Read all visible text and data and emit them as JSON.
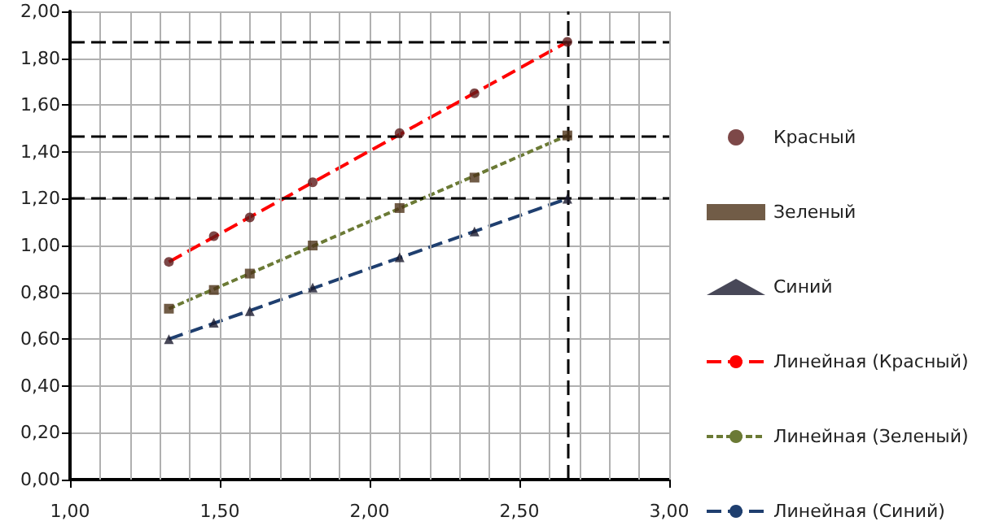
{
  "chart_data": {
    "type": "scatter",
    "xlim": [
      1,
      3
    ],
    "xticks": [
      {
        "value": 1,
        "label": "1,00"
      },
      {
        "value": 1.1,
        "label": null
      },
      {
        "value": 1.2,
        "label": null
      },
      {
        "value": 1.3,
        "label": null
      },
      {
        "value": 1.4,
        "label": null
      },
      {
        "value": 1.5,
        "label": "1,50"
      },
      {
        "value": 1.6,
        "label": null
      },
      {
        "value": 1.7,
        "label": null
      },
      {
        "value": 1.8,
        "label": null
      },
      {
        "value": 1.9,
        "label": null
      },
      {
        "value": 2,
        "label": "2,00"
      },
      {
        "value": 2.1,
        "label": null
      },
      {
        "value": 2.2,
        "label": null
      },
      {
        "value": 2.3,
        "label": null
      },
      {
        "value": 2.4,
        "label": null
      },
      {
        "value": 2.5,
        "label": "2,50"
      },
      {
        "value": 2.6,
        "label": null
      },
      {
        "value": 2.7,
        "label": null
      },
      {
        "value": 2.8,
        "label": null
      },
      {
        "value": 2.9,
        "label": null
      },
      {
        "value": 3,
        "label": "3,00"
      }
    ],
    "ylim": [
      0,
      2
    ],
    "yticks": [
      {
        "value": 0,
        "label": "0,00"
      },
      {
        "value": 0.2,
        "label": "0,20"
      },
      {
        "value": 0.4,
        "label": "0,40"
      },
      {
        "value": 0.6,
        "label": "0,60"
      },
      {
        "value": 0.8,
        "label": "0,80"
      },
      {
        "value": 1,
        "label": "1,00"
      },
      {
        "value": 1.2,
        "label": "1,20"
      },
      {
        "value": 1.4,
        "label": "1,40"
      },
      {
        "value": 1.6,
        "label": "1,60"
      },
      {
        "value": 1.8,
        "label": "1,80"
      },
      {
        "value": 2,
        "label": "2,00"
      }
    ],
    "grid": true,
    "legend": "right",
    "series": [
      {
        "name": "Красный",
        "marker": "circle",
        "color": "#5c1a1a",
        "x": [
          1.33,
          1.48,
          1.6,
          1.81,
          2.1,
          2.35,
          2.66
        ],
        "values": [
          0.93,
          1.04,
          1.12,
          1.27,
          1.48,
          1.65,
          1.87
        ]
      },
      {
        "name": "Зеленый",
        "marker": "square",
        "color": "#4d3319",
        "x": [
          1.33,
          1.48,
          1.6,
          1.81,
          2.1,
          2.35,
          2.66
        ],
        "values": [
          0.73,
          0.81,
          0.88,
          1.0,
          1.16,
          1.29,
          1.47
        ]
      },
      {
        "name": "Синий",
        "marker": "triangle",
        "color": "#1a1a2e",
        "x": [
          1.33,
          1.48,
          1.6,
          1.81,
          2.1,
          2.35,
          2.66
        ],
        "values": [
          0.6,
          0.67,
          0.72,
          0.82,
          0.95,
          1.06,
          1.2
        ]
      },
      {
        "name": "Линейная (Красный)",
        "type": "line",
        "line_style": "dashed",
        "color": "#ff0000",
        "x": [
          1.33,
          2.66
        ],
        "values": [
          0.93,
          1.87
        ]
      },
      {
        "name": "Линейная (Зеленый)",
        "type": "line",
        "line_style": "dotted",
        "color": "#6b7a35",
        "x": [
          1.33,
          2.66
        ],
        "values": [
          0.73,
          1.47
        ]
      },
      {
        "name": "Линейная (Синий)",
        "type": "line",
        "line_style": "dashed",
        "color": "#1f3f6f",
        "x": [
          1.33,
          2.66
        ],
        "values": [
          0.6,
          1.2
        ]
      }
    ],
    "ref_lines": [
      {
        "axis": "y",
        "value": 1.87,
        "color": "#000000",
        "line_style": "dashed"
      },
      {
        "axis": "y",
        "value": 1.47,
        "color": "#000000",
        "line_style": "dashed"
      },
      {
        "axis": "y",
        "value": 1.2,
        "color": "#000000",
        "line_style": "dashed"
      },
      {
        "axis": "x",
        "value": 2.66,
        "color": "#000000",
        "line_style": "dashed"
      }
    ]
  }
}
